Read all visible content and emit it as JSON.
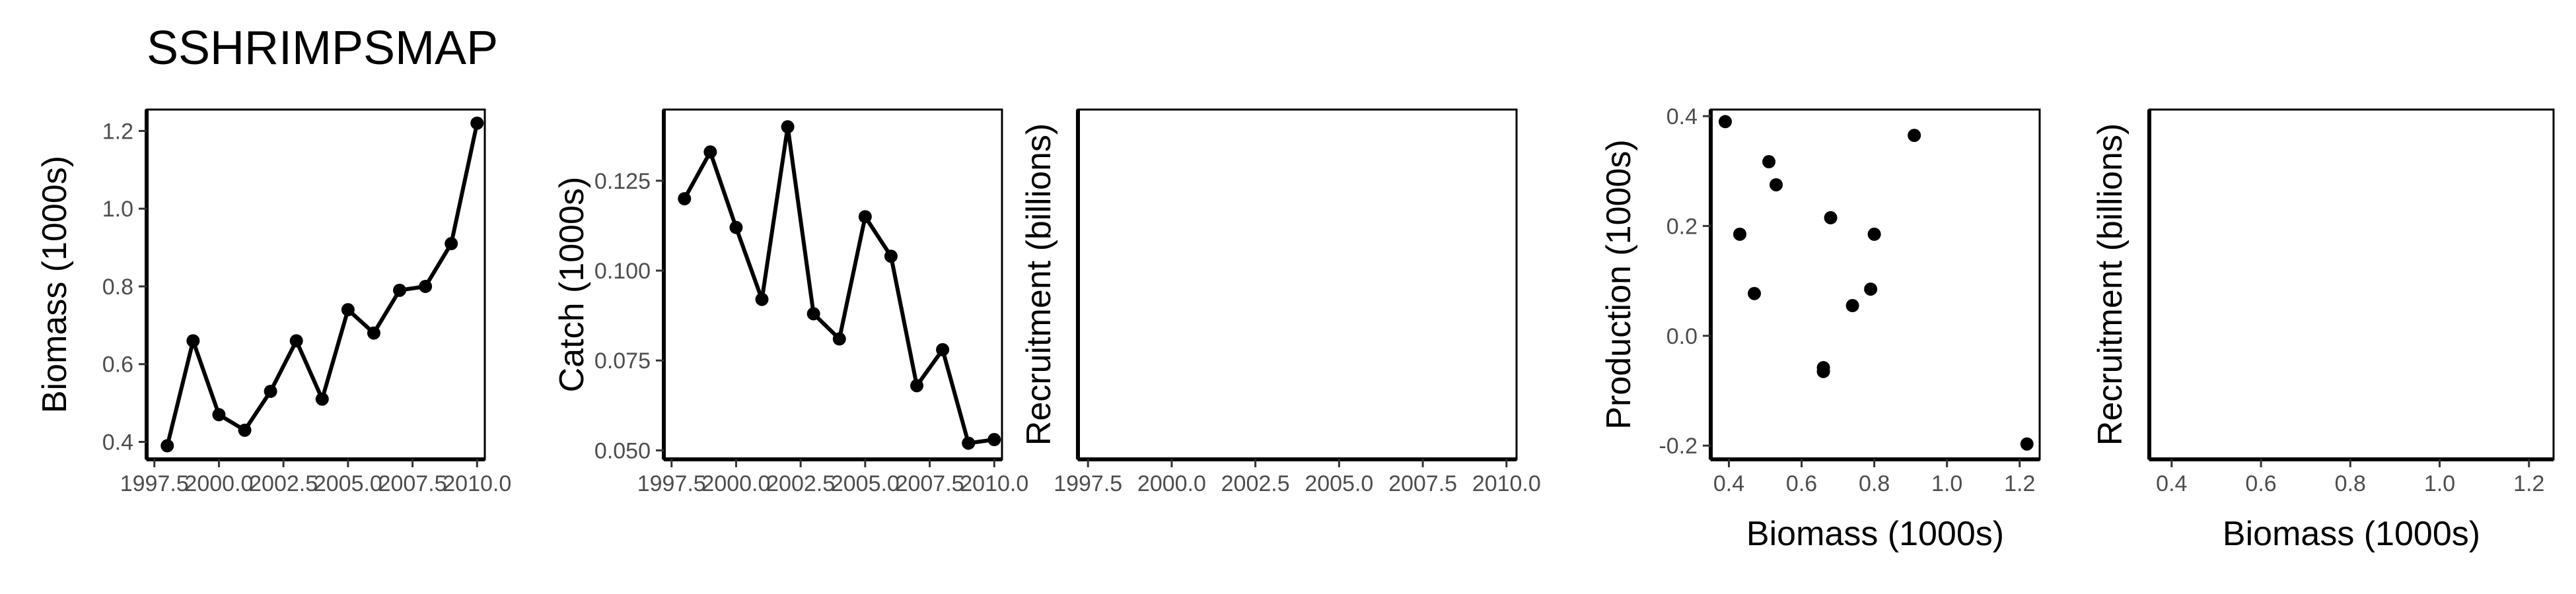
{
  "title": "SSHRIMPSMAP",
  "chart_data": [
    {
      "type": "line",
      "xlabel": "",
      "ylabel": "Biomass (1000s)",
      "xlim": [
        1997.2,
        2010.3
      ],
      "ylim": [
        0.355,
        1.255
      ],
      "xticks": [
        1997.5,
        2000.0,
        2002.5,
        2005.0,
        2007.5,
        2010.0
      ],
      "xtick_labels": [
        "1997.5",
        "2000.0",
        "2002.5",
        "2005.0",
        "2007.5",
        "2010.0"
      ],
      "yticks": [
        0.4,
        0.6,
        0.8,
        1.0,
        1.2
      ],
      "ytick_labels": [
        "0.4",
        "0.6",
        "0.8",
        "1.0",
        "1.2"
      ],
      "x": [
        1998,
        1999,
        2000,
        2001,
        2002,
        2003,
        2004,
        2005,
        2006,
        2007,
        2008,
        2009,
        2010
      ],
      "y": [
        0.39,
        0.66,
        0.47,
        0.43,
        0.53,
        0.66,
        0.51,
        0.74,
        0.68,
        0.79,
        0.8,
        0.91,
        1.22
      ]
    },
    {
      "type": "line",
      "xlabel": "",
      "ylabel": "Catch (1000s)",
      "xlim": [
        1997.2,
        2010.3
      ],
      "ylim": [
        0.0475,
        0.1448
      ],
      "xticks": [
        1997.5,
        2000.0,
        2002.5,
        2005.0,
        2007.5,
        2010.0
      ],
      "xtick_labels": [
        "1997.5",
        "2000.0",
        "2002.5",
        "2005.0",
        "2007.5",
        "2010.0"
      ],
      "yticks": [
        0.05,
        0.075,
        0.1,
        0.125
      ],
      "ytick_labels": [
        "0.050",
        "0.075",
        "0.100",
        "0.125"
      ],
      "x": [
        1998,
        1999,
        2000,
        2001,
        2002,
        2003,
        2004,
        2005,
        2006,
        2007,
        2008,
        2009,
        2010
      ],
      "y": [
        0.12,
        0.133,
        0.112,
        0.092,
        0.14,
        0.088,
        0.081,
        0.115,
        0.104,
        0.068,
        0.078,
        0.052,
        0.053
      ]
    },
    {
      "type": "line",
      "xlabel": "",
      "ylabel": "Recruitment (billions)",
      "xlim": [
        1997.2,
        2010.3
      ],
      "ylim": [
        0,
        1
      ],
      "xticks": [
        1997.5,
        2000.0,
        2002.5,
        2005.0,
        2007.5,
        2010.0
      ],
      "xtick_labels": [
        "1997.5",
        "2000.0",
        "2002.5",
        "2005.0",
        "2007.5",
        "2010.0"
      ],
      "yticks": [],
      "ytick_labels": [],
      "x": [],
      "y": []
    },
    {
      "type": "scatter",
      "xlabel": "Biomass (1000s)",
      "ylabel": "Production (1000s)",
      "xlim": [
        0.35,
        1.255
      ],
      "ylim": [
        -0.225,
        0.412
      ],
      "xticks": [
        0.4,
        0.6,
        0.8,
        1.0,
        1.2
      ],
      "xtick_labels": [
        "0.4",
        "0.6",
        "0.8",
        "1.0",
        "1.2"
      ],
      "yticks": [
        -0.2,
        0.0,
        0.2,
        0.4
      ],
      "ytick_labels": [
        "-0.2",
        "0.0",
        "0.2",
        "0.4"
      ],
      "x": [
        0.39,
        0.43,
        0.47,
        0.51,
        0.53,
        0.66,
        0.66,
        0.68,
        0.74,
        0.79,
        0.8,
        0.91,
        1.22
      ],
      "y": [
        0.39,
        0.185,
        0.077,
        0.317,
        0.275,
        -0.058,
        -0.065,
        0.215,
        0.055,
        0.085,
        0.185,
        0.365,
        -0.197
      ]
    },
    {
      "type": "scatter",
      "xlabel": "Biomass (1000s)",
      "ylabel": "Recruitment (billions)",
      "xlim": [
        0.35,
        1.255
      ],
      "ylim": [
        0,
        1
      ],
      "xticks": [
        0.4,
        0.6,
        0.8,
        1.0,
        1.2
      ],
      "xtick_labels": [
        "0.4",
        "0.6",
        "0.8",
        "1.0",
        "1.2"
      ],
      "yticks": [],
      "ytick_labels": [],
      "x": [],
      "y": []
    }
  ]
}
